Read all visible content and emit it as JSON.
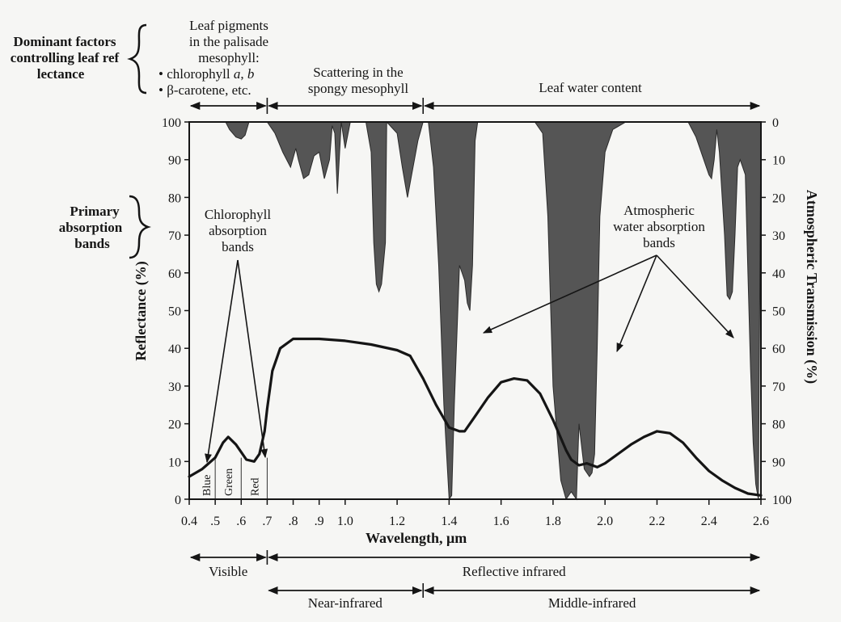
{
  "chart_data": {
    "type": "line",
    "xlabel": "Wavelength, μm",
    "ylabel": "Reflectance (%)",
    "ylabel_right": "Atmospheric Transmission (%)",
    "xlim": [
      0.4,
      2.6
    ],
    "ylim": [
      0,
      100
    ],
    "ylim_right": [
      0,
      100
    ],
    "x_ticks": [
      0.4,
      0.5,
      0.6,
      0.7,
      0.8,
      0.9,
      1.0,
      1.2,
      1.4,
      1.6,
      1.8,
      2.0,
      2.2,
      2.4,
      2.6
    ],
    "x_tick_labels": [
      "0.4",
      ".5",
      ".6",
      ".7",
      ".8",
      ".9",
      "1.0",
      "1.2",
      "1.4",
      "1.6",
      "1.8",
      "2.0",
      "2.2",
      "2.4",
      "2.6"
    ],
    "y_ticks": [
      0,
      10,
      20,
      30,
      40,
      50,
      60,
      70,
      80,
      90,
      100
    ],
    "y_right_tick_labels": [
      "100",
      "90",
      "80",
      "70",
      "60",
      "50",
      "40",
      "30",
      "20",
      "10",
      "0"
    ],
    "series": [
      {
        "kind": "reflectance",
        "color": "#151515",
        "x": [
          0.4,
          0.45,
          0.5,
          0.53,
          0.55,
          0.58,
          0.62,
          0.65,
          0.67,
          0.69,
          0.7,
          0.72,
          0.75,
          0.8,
          0.9,
          1.0,
          1.1,
          1.2,
          1.25,
          1.3,
          1.35,
          1.4,
          1.44,
          1.46,
          1.5,
          1.55,
          1.6,
          1.65,
          1.7,
          1.75,
          1.8,
          1.85,
          1.87,
          1.9,
          1.93,
          1.97,
          2.0,
          2.05,
          2.1,
          2.15,
          2.2,
          2.25,
          2.3,
          2.35,
          2.4,
          2.45,
          2.5,
          2.55,
          2.6
        ],
        "y": [
          6,
          8,
          11,
          15,
          16.5,
          14.5,
          10.5,
          10,
          12,
          18,
          24,
          34,
          40,
          42.5,
          42.5,
          42,
          41,
          39.5,
          38,
          32,
          25,
          19,
          18,
          18,
          22,
          27,
          31,
          32,
          31.5,
          28,
          21,
          13,
          10.5,
          9,
          9.5,
          8.5,
          9.5,
          12,
          14.5,
          16.5,
          18,
          17.5,
          15,
          11,
          7.5,
          5,
          3,
          1.5,
          1
        ]
      },
      {
        "kind": "atmospheric-water-absorption",
        "color": "#555555",
        "x": [
          0.4,
          0.54,
          0.555,
          0.58,
          0.6,
          0.615,
          0.63,
          0.7,
          0.73,
          0.76,
          0.79,
          0.81,
          0.82,
          0.84,
          0.86,
          0.88,
          0.9,
          0.92,
          0.94,
          0.95,
          0.96,
          0.97,
          0.985,
          1.0,
          1.02,
          1.08,
          1.1,
          1.11,
          1.12,
          1.13,
          1.14,
          1.155,
          1.16,
          1.2,
          1.22,
          1.24,
          1.28,
          1.3,
          1.32,
          1.34,
          1.36,
          1.38,
          1.4,
          1.41,
          1.42,
          1.44,
          1.46,
          1.47,
          1.48,
          1.49,
          1.5,
          1.51,
          1.55,
          1.62,
          1.68,
          1.73,
          1.76,
          1.78,
          1.8,
          1.83,
          1.85,
          1.87,
          1.89,
          1.9,
          1.92,
          1.94,
          1.95,
          1.96,
          1.97,
          1.98,
          2.0,
          2.03,
          2.08,
          2.15,
          2.25,
          2.32,
          2.35,
          2.38,
          2.4,
          2.41,
          2.42,
          2.43,
          2.44,
          2.46,
          2.47,
          2.48,
          2.49,
          2.5,
          2.51,
          2.52,
          2.54,
          2.55,
          2.56,
          2.57,
          2.58,
          2.59,
          2.6
        ],
        "y": [
          100,
          100,
          98,
          96,
          95.5,
          96.5,
          100,
          100,
          97,
          92,
          88,
          93,
          90,
          85,
          86,
          91,
          92,
          85,
          90,
          99,
          97,
          81,
          100,
          93,
          100,
          100,
          92,
          68,
          57,
          55,
          57,
          68,
          100,
          97,
          88,
          80,
          95,
          100,
          100,
          88,
          62,
          25,
          0,
          1,
          25,
          62,
          58,
          52,
          50,
          62,
          95,
          100,
          100,
          100,
          100,
          100,
          97,
          75,
          30,
          5,
          0,
          2,
          0,
          20,
          8,
          6,
          7,
          12,
          40,
          75,
          92,
          98,
          100,
          100,
          100,
          100,
          96,
          90,
          86,
          85,
          90,
          98,
          92,
          70,
          54,
          53,
          55,
          70,
          88,
          90,
          86,
          60,
          35,
          15,
          4,
          0,
          100
        ]
      }
    ],
    "color_bands": [
      {
        "label": "Blue",
        "from": 0.43,
        "to": 0.5
      },
      {
        "label": "Green",
        "from": 0.5,
        "to": 0.6
      },
      {
        "label": "Red",
        "from": 0.6,
        "to": 0.7
      }
    ],
    "annotations": {
      "dominant_factors": "Dominant factors controlling leaf reflectance",
      "leaf_pigments": [
        "Leaf pigments",
        "in the palisade",
        "mesophyll:",
        "• chlorophyll a, b",
        "• β-carotene,  etc."
      ],
      "scattering": [
        "Scattering in the",
        "spongy mesophyll"
      ],
      "leaf_water": "Leaf water content",
      "primary_absorption": [
        "Primary",
        "absorption",
        "bands"
      ],
      "chlorophyll_bands": [
        "Chlorophyll",
        "absorption",
        "bands"
      ],
      "atmospheric_bands": [
        "Atmospheric",
        "water absorption",
        "bands"
      ]
    },
    "regions": {
      "top": [
        {
          "from": 0.4,
          "to": 0.7
        },
        {
          "from": 0.7,
          "to": 1.3
        },
        {
          "from": 1.3,
          "to": 2.6
        }
      ],
      "bottom_row1": [
        {
          "label": "Visible",
          "from": 0.4,
          "to": 0.7
        },
        {
          "label": "Reflective infrared",
          "from": 0.7,
          "to": 2.6
        }
      ],
      "bottom_row2": [
        {
          "label": "Near-infrared",
          "from": 0.7,
          "to": 1.3
        },
        {
          "label": "Middle-infrared",
          "from": 1.3,
          "to": 2.6
        }
      ]
    },
    "grid": false,
    "legend": "none"
  }
}
